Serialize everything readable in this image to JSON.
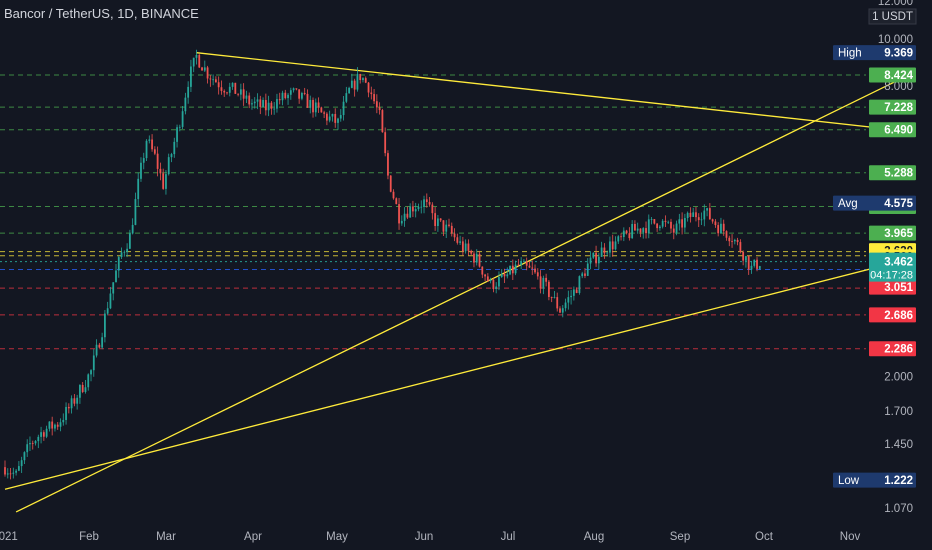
{
  "header": {
    "title": "Bancor / TetherUS, 1D, BINANCE"
  },
  "chart_data": {
    "type": "candlestick",
    "title": "Bancor / TetherUS, 1D, BINANCE",
    "y_scale": "log",
    "y_range": [
      1.0,
      12.0
    ],
    "y_ticks": [
      "12.000",
      "10.000",
      "8.000",
      "2.000",
      "1.700",
      "1.450",
      "1.070"
    ],
    "x_ticks": [
      "2021",
      "Feb",
      "Mar",
      "Apr",
      "May",
      "Jun",
      "Jul",
      "Aug",
      "Sep",
      "Oct",
      "Nov"
    ],
    "currency_label": "USDT",
    "currency_value": "1",
    "current_price": "3.462",
    "countdown": "04:17:28",
    "stats": {
      "high": "9.369",
      "avg": "4.575",
      "low": "1.222"
    },
    "markers": [
      {
        "label": "High",
        "value": "9.369"
      },
      {
        "label": "Avg",
        "value": "4.575"
      },
      {
        "label": "Low",
        "value": "1.222"
      }
    ],
    "levels": [
      {
        "value": "8.424",
        "color": "#4caf50",
        "style": "dashed"
      },
      {
        "value": "7.228",
        "color": "#4caf50",
        "style": "dashed"
      },
      {
        "value": "6.490",
        "color": "#4caf50",
        "style": "dashed"
      },
      {
        "value": "5.288",
        "color": "#4caf50",
        "style": "dashed"
      },
      {
        "value": "4.502",
        "color": "#4caf50",
        "style": "dashed"
      },
      {
        "value": "3.965",
        "color": "#4caf50",
        "style": "dashed"
      },
      {
        "value": "3.630",
        "color": "#ffeb3b",
        "style": "dashed"
      },
      {
        "value": "3.560",
        "color": "#ffeb3b",
        "style": "dashed"
      },
      {
        "value": "3.335",
        "color": "#2962ff",
        "style": "dashed"
      },
      {
        "value": "3.051",
        "color": "#f23645",
        "style": "dashed"
      },
      {
        "value": "2.686",
        "color": "#f23645",
        "style": "dashed"
      },
      {
        "value": "2.286",
        "color": "#f23645",
        "style": "dashed"
      }
    ],
    "trendlines": [
      {
        "from": [
          "Mar 11",
          9.369
        ],
        "to": [
          "Nov 25",
          6.42
        ],
        "color": "#ffeb3b"
      },
      {
        "from": [
          "Jan 1",
          1.17
        ],
        "to": [
          "Nov 25",
          3.53
        ],
        "color": "#ffeb3b"
      },
      {
        "from": [
          "Jan 5",
          1.05
        ],
        "to": [
          "Nov 25",
          8.55
        ],
        "color": "#ffeb3b"
      }
    ],
    "price_path": [
      [
        "Jan 1",
        1.3
      ],
      [
        "Jan 5",
        1.25
      ],
      [
        "Jan 10",
        1.45
      ],
      [
        "Jan 15",
        1.55
      ],
      [
        "Jan 20",
        1.6
      ],
      [
        "Jan 25",
        1.75
      ],
      [
        "Feb 1",
        2.05
      ],
      [
        "Feb 5",
        2.5
      ],
      [
        "Feb 8",
        3.0
      ],
      [
        "Feb 12",
        3.6
      ],
      [
        "Feb 15",
        3.9
      ],
      [
        "Feb 18",
        5.0
      ],
      [
        "Feb 21",
        6.2
      ],
      [
        "Feb 24",
        5.7
      ],
      [
        "Feb 27",
        5.0
      ],
      [
        "Mar 2",
        5.8
      ],
      [
        "Mar 5",
        6.8
      ],
      [
        "Mar 8",
        8.2
      ],
      [
        "Mar 11",
        9.2
      ],
      [
        "Mar 15",
        8.5
      ],
      [
        "Mar 20",
        8.0
      ],
      [
        "Mar 25",
        7.8
      ],
      [
        "Mar 30",
        7.4
      ],
      [
        "Apr 5",
        7.2
      ],
      [
        "Apr 10",
        7.5
      ],
      [
        "Apr 15",
        7.7
      ],
      [
        "Apr 20",
        7.4
      ],
      [
        "Apr 25",
        7.0
      ],
      [
        "May 1",
        6.7
      ],
      [
        "May 5",
        7.8
      ],
      [
        "May 9",
        8.4
      ],
      [
        "May 12",
        8.0
      ],
      [
        "May 16",
        6.9
      ],
      [
        "May 19",
        5.2
      ],
      [
        "May 23",
        4.3
      ],
      [
        "May 28",
        4.5
      ],
      [
        "Jun 1",
        4.6
      ],
      [
        "Jun 5",
        4.2
      ],
      [
        "Jun 10",
        4.0
      ],
      [
        "Jun 15",
        3.7
      ],
      [
        "Jun 20",
        3.5
      ],
      [
        "Jun 25",
        3.1
      ],
      [
        "Jun 30",
        3.2
      ],
      [
        "Jul 5",
        3.4
      ],
      [
        "Jul 10",
        3.3
      ],
      [
        "Jul 15",
        3.05
      ],
      [
        "Jul 20",
        2.75
      ],
      [
        "Jul 25",
        3.0
      ],
      [
        "Jul 30",
        3.4
      ],
      [
        "Aug 5",
        3.7
      ],
      [
        "Aug 10",
        3.8
      ],
      [
        "Aug 15",
        4.0
      ],
      [
        "Aug 20",
        4.1
      ],
      [
        "Aug 25",
        4.2
      ],
      [
        "Aug 30",
        4.0
      ],
      [
        "Sep 5",
        4.3
      ],
      [
        "Sep 10",
        4.4
      ],
      [
        "Sep 15",
        4.1
      ],
      [
        "Sep 20",
        3.9
      ],
      [
        "Sep 24",
        3.6
      ],
      [
        "Sep 27",
        3.35
      ],
      [
        "Sep 30",
        3.46
      ]
    ],
    "grid": false,
    "colors": {
      "up": "#26a69a",
      "down": "#ef5350",
      "background": "#131722",
      "axis_text": "#b2b5be"
    }
  }
}
